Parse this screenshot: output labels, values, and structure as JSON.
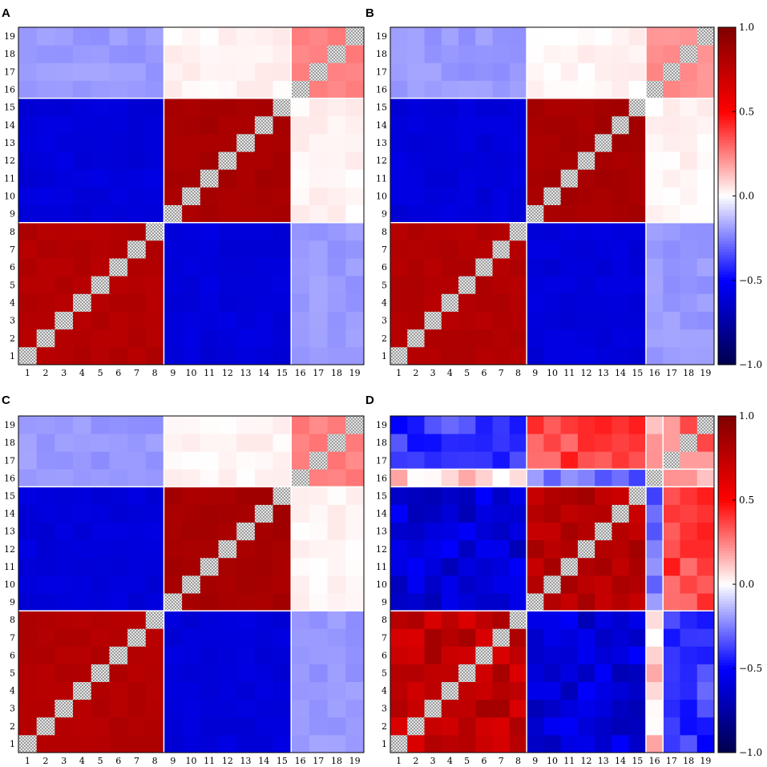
{
  "chart_data": [
    {
      "type": "heatmap",
      "panel": "A",
      "x_ticks": [
        "1",
        "2",
        "3",
        "4",
        "5",
        "6",
        "7",
        "8",
        "9",
        "10",
        "11",
        "12",
        "13",
        "14",
        "15",
        "16",
        "17",
        "18",
        "19"
      ],
      "y_ticks": [
        "1",
        "2",
        "3",
        "4",
        "5",
        "6",
        "7",
        "8",
        "9",
        "10",
        "11",
        "12",
        "13",
        "14",
        "15",
        "16",
        "17",
        "18",
        "19"
      ],
      "groups": [
        [
          1,
          8
        ],
        [
          9,
          15
        ],
        [
          16,
          19
        ]
      ],
      "block_values": [
        [
          0.8,
          -0.6,
          -0.2
        ],
        [
          -0.6,
          0.85,
          0.02
        ],
        [
          -0.2,
          0.02,
          0.25
        ]
      ],
      "diagonal": "masked",
      "value_range": [
        -1,
        1
      ],
      "colormap": "seismic"
    },
    {
      "type": "heatmap",
      "panel": "B",
      "x_ticks": [
        "1",
        "2",
        "3",
        "4",
        "5",
        "6",
        "7",
        "8",
        "9",
        "10",
        "11",
        "12",
        "13",
        "14",
        "15",
        "16",
        "17",
        "18",
        "19"
      ],
      "y_ticks": [
        "1",
        "2",
        "3",
        "4",
        "5",
        "6",
        "7",
        "8",
        "9",
        "10",
        "11",
        "12",
        "13",
        "14",
        "15",
        "16",
        "17",
        "18",
        "19"
      ],
      "groups": [
        [
          1,
          8
        ],
        [
          9,
          15
        ],
        [
          16,
          19
        ]
      ],
      "block_values": [
        [
          0.8,
          -0.6,
          -0.2
        ],
        [
          -0.6,
          0.85,
          0.02
        ],
        [
          -0.2,
          0.02,
          0.22
        ]
      ],
      "diagonal": "masked",
      "value_range": [
        -1,
        1
      ],
      "colormap": "seismic"
    },
    {
      "type": "heatmap",
      "panel": "C",
      "x_ticks": [
        "1",
        "2",
        "3",
        "4",
        "5",
        "6",
        "7",
        "8",
        "9",
        "10",
        "11",
        "12",
        "13",
        "14",
        "15",
        "16",
        "17",
        "18",
        "19"
      ],
      "y_ticks": [
        "1",
        "2",
        "3",
        "4",
        "5",
        "6",
        "7",
        "8",
        "9",
        "10",
        "11",
        "12",
        "13",
        "14",
        "15",
        "16",
        "17",
        "18",
        "19"
      ],
      "groups": [
        [
          1,
          8
        ],
        [
          9,
          15
        ],
        [
          16,
          19
        ]
      ],
      "block_values": [
        [
          0.8,
          -0.6,
          -0.2
        ],
        [
          -0.6,
          0.85,
          0.02
        ],
        [
          -0.2,
          0.02,
          0.25
        ]
      ],
      "diagonal": "masked",
      "value_range": [
        -1,
        1
      ],
      "colormap": "seismic"
    },
    {
      "type": "heatmap",
      "panel": "D",
      "x_ticks": [
        "1",
        "2",
        "3",
        "4",
        "5",
        "6",
        "7",
        "8",
        "9",
        "10",
        "11",
        "12",
        "13",
        "14",
        "15",
        "16",
        "17",
        "18",
        "19"
      ],
      "y_ticks": [
        "1",
        "2",
        "3",
        "4",
        "5",
        "6",
        "7",
        "8",
        "9",
        "10",
        "11",
        "12",
        "13",
        "14",
        "15",
        "16",
        "17",
        "18",
        "19"
      ],
      "groups": [
        [
          1,
          8
        ],
        [
          9,
          15
        ],
        [
          16
        ],
        [
          17,
          19
        ]
      ],
      "block_values": [
        [
          0.75,
          -0.6,
          0.1,
          -0.4
        ],
        [
          -0.6,
          0.8,
          -0.3,
          0.35
        ],
        [
          0.1,
          -0.3,
          0.0,
          0.2
        ],
        [
          -0.4,
          0.35,
          0.2,
          0.3
        ]
      ],
      "diagonal": "masked",
      "value_range": [
        -1,
        1
      ],
      "colormap": "seismic"
    }
  ],
  "colorbars": [
    {
      "panel": "B",
      "ticks": [
        "1.0",
        "0.5",
        "0.0",
        "−0.5",
        "−1.0"
      ],
      "tick_values": [
        1.0,
        0.5,
        0.0,
        -0.5,
        -1.0
      ]
    },
    {
      "panel": "D",
      "ticks": [
        "1.0",
        "0.5",
        "0.0",
        "−0.5",
        "−1.0"
      ],
      "tick_values": [
        1.0,
        0.5,
        0.0,
        -0.5,
        -1.0
      ]
    }
  ],
  "colors": {
    "grid_line": "#ffffff",
    "mask_light": "#e8e8e8",
    "mask_dark": "#9a9a9a",
    "frame": "#000000"
  }
}
